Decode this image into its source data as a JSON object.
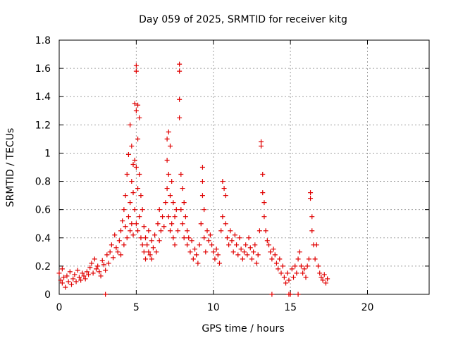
{
  "chart_data": {
    "type": "scatter",
    "title": "Day 059 of 2025, SRMTID for receiver kitg",
    "xlabel": "GPS time / hours",
    "ylabel": "SRMTID / TECUs",
    "xlim": [
      0,
      24
    ],
    "ylim": [
      0,
      1.8
    ],
    "xticks": [
      0,
      5,
      10,
      15,
      20
    ],
    "xtick_labels": [
      "0",
      "5",
      "10",
      "15",
      "20"
    ],
    "yticks": [
      0,
      0.2,
      0.4,
      0.6,
      0.8,
      1,
      1.2,
      1.4,
      1.6,
      1.8
    ],
    "ytick_labels": [
      "0",
      "0.2",
      "0.4",
      "0.6",
      "0.8",
      "1",
      "1.2",
      "1.4",
      "1.6",
      "1.8"
    ],
    "grid": true,
    "marker": "plus",
    "marker_color": "#e00000",
    "series": [
      {
        "name": "SRMTID",
        "points": [
          [
            0.0,
            0.15
          ],
          [
            0.1,
            0.1
          ],
          [
            0.2,
            0.08
          ],
          [
            0.2,
            0.18
          ],
          [
            0.3,
            0.12
          ],
          [
            0.4,
            0.05
          ],
          [
            0.5,
            0.13
          ],
          [
            0.6,
            0.09
          ],
          [
            0.7,
            0.16
          ],
          [
            0.8,
            0.07
          ],
          [
            0.9,
            0.11
          ],
          [
            1.0,
            0.14
          ],
          [
            1.1,
            0.09
          ],
          [
            1.2,
            0.17
          ],
          [
            1.3,
            0.12
          ],
          [
            1.4,
            0.1
          ],
          [
            1.5,
            0.15
          ],
          [
            1.6,
            0.13
          ],
          [
            1.7,
            0.11
          ],
          [
            1.8,
            0.16
          ],
          [
            1.9,
            0.14
          ],
          [
            2.0,
            0.19
          ],
          [
            2.1,
            0.22
          ],
          [
            2.2,
            0.15
          ],
          [
            2.3,
            0.25
          ],
          [
            2.4,
            0.18
          ],
          [
            2.5,
            0.2
          ],
          [
            2.6,
            0.16
          ],
          [
            2.7,
            0.13
          ],
          [
            2.8,
            0.24
          ],
          [
            2.9,
            0.21
          ],
          [
            3.0,
            0.17
          ],
          [
            3.0,
            0.0
          ],
          [
            3.1,
            0.28
          ],
          [
            3.2,
            0.22
          ],
          [
            3.3,
            0.3
          ],
          [
            3.4,
            0.35
          ],
          [
            3.5,
            0.26
          ],
          [
            3.6,
            0.42
          ],
          [
            3.7,
            0.33
          ],
          [
            3.8,
            0.3
          ],
          [
            3.9,
            0.38
          ],
          [
            4.0,
            0.45
          ],
          [
            4.0,
            0.28
          ],
          [
            4.1,
            0.52
          ],
          [
            4.2,
            0.6
          ],
          [
            4.2,
            0.35
          ],
          [
            4.3,
            0.7
          ],
          [
            4.3,
            0.48
          ],
          [
            4.4,
            0.85
          ],
          [
            4.4,
            0.4
          ],
          [
            4.5,
            0.99
          ],
          [
            4.5,
            0.55
          ],
          [
            4.6,
            1.2
          ],
          [
            4.6,
            0.65
          ],
          [
            4.6,
            0.45
          ],
          [
            4.7,
            1.05
          ],
          [
            4.7,
            0.8
          ],
          [
            4.7,
            0.5
          ],
          [
            4.8,
            0.92
          ],
          [
            4.8,
            0.72
          ],
          [
            4.8,
            0.42
          ],
          [
            4.9,
            1.35
          ],
          [
            4.9,
            0.95
          ],
          [
            4.9,
            0.6
          ],
          [
            5.0,
            1.62
          ],
          [
            5.0,
            1.58
          ],
          [
            5.0,
            1.3
          ],
          [
            5.0,
            0.9
          ],
          [
            5.0,
            0.5
          ],
          [
            5.1,
            1.34
          ],
          [
            5.1,
            1.1
          ],
          [
            5.1,
            0.75
          ],
          [
            5.1,
            0.45
          ],
          [
            5.2,
            1.25
          ],
          [
            5.2,
            0.85
          ],
          [
            5.2,
            0.55
          ],
          [
            5.3,
            0.7
          ],
          [
            5.3,
            0.4
          ],
          [
            5.4,
            0.6
          ],
          [
            5.4,
            0.35
          ],
          [
            5.5,
            0.48
          ],
          [
            5.5,
            0.3
          ],
          [
            5.6,
            0.4
          ],
          [
            5.6,
            0.25
          ],
          [
            5.7,
            0.35
          ],
          [
            5.8,
            0.3
          ],
          [
            5.8,
            0.45
          ],
          [
            5.9,
            0.28
          ],
          [
            6.0,
            0.38
          ],
          [
            6.0,
            0.25
          ],
          [
            6.1,
            0.33
          ],
          [
            6.2,
            0.42
          ],
          [
            6.3,
            0.3
          ],
          [
            6.4,
            0.5
          ],
          [
            6.5,
            0.38
          ],
          [
            6.5,
            0.6
          ],
          [
            6.6,
            0.45
          ],
          [
            6.7,
            0.55
          ],
          [
            6.8,
            0.48
          ],
          [
            6.9,
            0.65
          ],
          [
            7.0,
            0.75
          ],
          [
            7.0,
            0.95
          ],
          [
            7.0,
            1.1
          ],
          [
            7.1,
            1.15
          ],
          [
            7.1,
            0.85
          ],
          [
            7.1,
            0.55
          ],
          [
            7.2,
            1.05
          ],
          [
            7.2,
            0.7
          ],
          [
            7.2,
            0.45
          ],
          [
            7.3,
            0.8
          ],
          [
            7.3,
            0.5
          ],
          [
            7.4,
            0.65
          ],
          [
            7.4,
            0.4
          ],
          [
            7.5,
            0.55
          ],
          [
            7.5,
            0.35
          ],
          [
            7.6,
            0.6
          ],
          [
            7.7,
            0.45
          ],
          [
            7.8,
            1.63
          ],
          [
            7.8,
            1.58
          ],
          [
            7.8,
            1.38
          ],
          [
            7.8,
            1.25
          ],
          [
            7.9,
            0.85
          ],
          [
            7.9,
            0.6
          ],
          [
            8.0,
            0.75
          ],
          [
            8.0,
            0.5
          ],
          [
            8.1,
            0.65
          ],
          [
            8.1,
            0.4
          ],
          [
            8.2,
            0.55
          ],
          [
            8.3,
            0.45
          ],
          [
            8.3,
            0.35
          ],
          [
            8.4,
            0.4
          ],
          [
            8.5,
            0.3
          ],
          [
            8.6,
            0.38
          ],
          [
            8.7,
            0.25
          ],
          [
            8.8,
            0.32
          ],
          [
            8.9,
            0.28
          ],
          [
            9.0,
            0.22
          ],
          [
            9.1,
            0.35
          ],
          [
            9.2,
            0.5
          ],
          [
            9.3,
            0.9
          ],
          [
            9.3,
            0.8
          ],
          [
            9.3,
            0.7
          ],
          [
            9.4,
            0.6
          ],
          [
            9.4,
            0.4
          ],
          [
            9.5,
            0.3
          ],
          [
            9.6,
            0.45
          ],
          [
            9.7,
            0.38
          ],
          [
            9.8,
            0.42
          ],
          [
            9.9,
            0.35
          ],
          [
            10.0,
            0.3
          ],
          [
            10.1,
            0.25
          ],
          [
            10.2,
            0.32
          ],
          [
            10.3,
            0.28
          ],
          [
            10.4,
            0.22
          ],
          [
            10.5,
            0.45
          ],
          [
            10.6,
            0.55
          ],
          [
            10.6,
            0.8
          ],
          [
            10.7,
            0.75
          ],
          [
            10.8,
            0.7
          ],
          [
            10.8,
            0.5
          ],
          [
            10.9,
            0.4
          ],
          [
            11.0,
            0.35
          ],
          [
            11.1,
            0.45
          ],
          [
            11.2,
            0.38
          ],
          [
            11.3,
            0.3
          ],
          [
            11.4,
            0.42
          ],
          [
            11.5,
            0.35
          ],
          [
            11.6,
            0.28
          ],
          [
            11.7,
            0.4
          ],
          [
            11.8,
            0.32
          ],
          [
            11.9,
            0.25
          ],
          [
            12.0,
            0.3
          ],
          [
            12.1,
            0.35
          ],
          [
            12.2,
            0.28
          ],
          [
            12.3,
            0.4
          ],
          [
            12.4,
            0.33
          ],
          [
            12.5,
            0.25
          ],
          [
            12.6,
            0.3
          ],
          [
            12.7,
            0.35
          ],
          [
            12.8,
            0.22
          ],
          [
            12.9,
            0.28
          ],
          [
            13.0,
            0.45
          ],
          [
            13.1,
            1.08
          ],
          [
            13.1,
            1.05
          ],
          [
            13.2,
            0.85
          ],
          [
            13.2,
            0.72
          ],
          [
            13.3,
            0.65
          ],
          [
            13.3,
            0.55
          ],
          [
            13.4,
            0.45
          ],
          [
            13.5,
            0.38
          ],
          [
            13.6,
            0.35
          ],
          [
            13.7,
            0.3
          ],
          [
            13.8,
            0.25
          ],
          [
            13.8,
            0.0
          ],
          [
            13.9,
            0.32
          ],
          [
            14.0,
            0.28
          ],
          [
            14.1,
            0.22
          ],
          [
            14.2,
            0.18
          ],
          [
            14.3,
            0.25
          ],
          [
            14.4,
            0.15
          ],
          [
            14.5,
            0.2
          ],
          [
            14.6,
            0.12
          ],
          [
            14.7,
            0.08
          ],
          [
            14.8,
            0.15
          ],
          [
            14.9,
            0.1
          ],
          [
            14.9,
            0.0
          ],
          [
            15.0,
            0.0
          ],
          [
            15.1,
            0.18
          ],
          [
            15.2,
            0.12
          ],
          [
            15.3,
            0.2
          ],
          [
            15.4,
            0.15
          ],
          [
            15.5,
            0.25
          ],
          [
            15.5,
            0.0
          ],
          [
            15.6,
            0.3
          ],
          [
            15.7,
            0.2
          ],
          [
            15.8,
            0.15
          ],
          [
            15.9,
            0.18
          ],
          [
            16.0,
            0.12
          ],
          [
            16.1,
            0.2
          ],
          [
            16.2,
            0.25
          ],
          [
            16.3,
            0.72
          ],
          [
            16.3,
            0.68
          ],
          [
            16.4,
            0.55
          ],
          [
            16.4,
            0.45
          ],
          [
            16.5,
            0.35
          ],
          [
            16.6,
            0.25
          ],
          [
            16.7,
            0.35
          ],
          [
            16.8,
            0.2
          ],
          [
            16.9,
            0.15
          ],
          [
            17.0,
            0.12
          ],
          [
            17.1,
            0.1
          ],
          [
            17.2,
            0.14
          ],
          [
            17.3,
            0.08
          ],
          [
            17.4,
            0.11
          ]
        ]
      }
    ]
  }
}
